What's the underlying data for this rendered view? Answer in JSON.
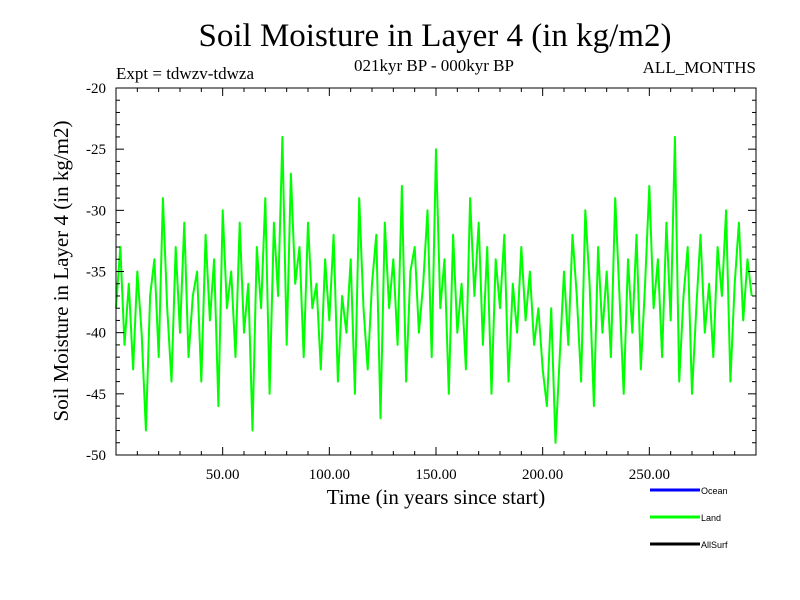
{
  "title": "Soil Moisture in Layer 4 (in kg/m2)",
  "subtitle": "021kyr BP - 000kyr BP",
  "left_label": "Expt = tdwzv-tdwza",
  "right_label": "ALL_MONTHS",
  "chart_data": {
    "type": "line",
    "title": "Soil Moisture in Layer 4 (in kg/m2)",
    "xlabel": "Time (in years since start)",
    "ylabel": "Soil Moisture in Layer 4 (in kg/m2)",
    "xlim": [
      0,
      300
    ],
    "ylim": [
      -50,
      -20
    ],
    "x_ticks": [
      50,
      100,
      150,
      200,
      250
    ],
    "x_tick_labels": [
      "50.00",
      "100.00",
      "150.00",
      "200.00",
      "250.00"
    ],
    "y_ticks": [
      -50,
      -45,
      -40,
      -35,
      -30,
      -25,
      -20
    ],
    "y_tick_labels": [
      "-50",
      "-45",
      "-40",
      "-35",
      "-30",
      "-25",
      "-20"
    ],
    "grid": false,
    "legend_position": "bottom-right",
    "series": [
      {
        "name": "Ocean",
        "color": "#0000ff",
        "x": [],
        "values": []
      },
      {
        "name": "Land",
        "color": "#00ff00",
        "x": [
          0,
          2,
          4,
          6,
          8,
          10,
          12,
          14,
          16,
          18,
          20,
          22,
          24,
          26,
          28,
          30,
          32,
          34,
          36,
          38,
          40,
          42,
          44,
          46,
          48,
          50,
          52,
          54,
          56,
          58,
          60,
          62,
          64,
          66,
          68,
          70,
          72,
          74,
          76,
          78,
          80,
          82,
          84,
          86,
          88,
          90,
          92,
          94,
          96,
          98,
          100,
          102,
          104,
          106,
          108,
          110,
          112,
          114,
          116,
          118,
          120,
          122,
          124,
          126,
          128,
          130,
          132,
          134,
          136,
          138,
          140,
          142,
          144,
          146,
          148,
          150,
          152,
          154,
          156,
          158,
          160,
          162,
          164,
          166,
          168,
          170,
          172,
          174,
          176,
          178,
          180,
          182,
          184,
          186,
          188,
          190,
          192,
          194,
          196,
          198,
          200,
          202,
          204,
          206,
          208,
          210,
          212,
          214,
          216,
          218,
          220,
          222,
          224,
          226,
          228,
          230,
          232,
          234,
          236,
          238,
          240,
          242,
          244,
          246,
          248,
          250,
          252,
          254,
          256,
          258,
          260,
          262,
          264,
          266,
          268,
          270,
          272,
          274,
          276,
          278,
          280,
          282,
          284,
          286,
          288,
          290,
          292,
          294,
          296,
          298
        ],
        "values": [
          -38,
          -33,
          -41,
          -36,
          -43,
          -35,
          -40,
          -48,
          -37,
          -34,
          -42,
          -29,
          -38,
          -44,
          -33,
          -40,
          -31,
          -42,
          -37,
          -35,
          -44,
          -32,
          -39,
          -34,
          -46,
          -30,
          -38,
          -35,
          -42,
          -31,
          -40,
          -36,
          -48,
          -33,
          -38,
          -29,
          -45,
          -31,
          -37,
          -24,
          -41,
          -27,
          -36,
          -33,
          -42,
          -31,
          -38,
          -36,
          -43,
          -34,
          -39,
          -32,
          -44,
          -37,
          -40,
          -34,
          -45,
          -29,
          -38,
          -43,
          -36,
          -32,
          -47,
          -31,
          -38,
          -34,
          -41,
          -28,
          -44,
          -35,
          -33,
          -40,
          -36,
          -30,
          -42,
          -25,
          -38,
          -34,
          -45,
          -32,
          -40,
          -36,
          -43,
          -29,
          -37,
          -31,
          -41,
          -33,
          -45,
          -34,
          -38,
          -32,
          -44,
          -36,
          -40,
          -33,
          -39,
          -35,
          -41,
          -38,
          -43,
          -46,
          -38,
          -49,
          -42,
          -35,
          -41,
          -32,
          -37,
          -44,
          -30,
          -36,
          -46,
          -33,
          -40,
          -35,
          -42,
          -29,
          -37,
          -45,
          -34,
          -40,
          -32,
          -43,
          -36,
          -28,
          -38,
          -34,
          -42,
          -31,
          -39,
          -24,
          -44,
          -37,
          -33,
          -45,
          -38,
          -32,
          -40,
          -36,
          -42,
          -33,
          -37,
          -30,
          -44,
          -36,
          -31,
          -39,
          -34,
          -37
        ]
      },
      {
        "name": "AllSurf",
        "color": "#000000",
        "x": [],
        "values": []
      }
    ]
  }
}
